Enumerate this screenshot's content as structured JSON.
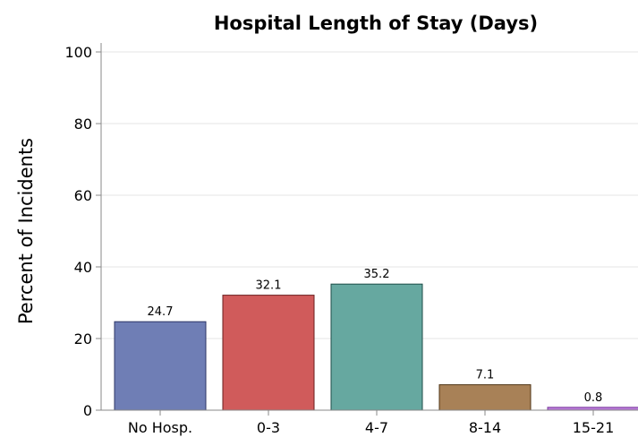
{
  "chart_data": {
    "type": "bar",
    "title": "Hospital Length of Stay (Days)",
    "xlabel": "",
    "ylabel": "Percent of Incidents",
    "categories": [
      "No Hosp.",
      "0-3",
      "4-7",
      "8-14",
      "15-21"
    ],
    "values": [
      24.7,
      32.1,
      35.2,
      7.1,
      0.8
    ],
    "data_labels": [
      "24.7",
      "32.1",
      "35.2",
      "7.1",
      "0.8"
    ],
    "ylim": [
      0,
      100
    ],
    "yticks": [
      0,
      20,
      40,
      60,
      80,
      100
    ],
    "ytick_labels": [
      "0",
      "20",
      "40",
      "60",
      "80",
      "100"
    ],
    "grid": true,
    "colors": [
      "#6f7eb5",
      "#d05b5b",
      "#66a8a0",
      "#a88157",
      "#b87bd6"
    ],
    "stroke_colors": [
      "#2c3566",
      "#6b1f1f",
      "#1d4d47",
      "#4f3416",
      "#7b3aa0"
    ]
  }
}
